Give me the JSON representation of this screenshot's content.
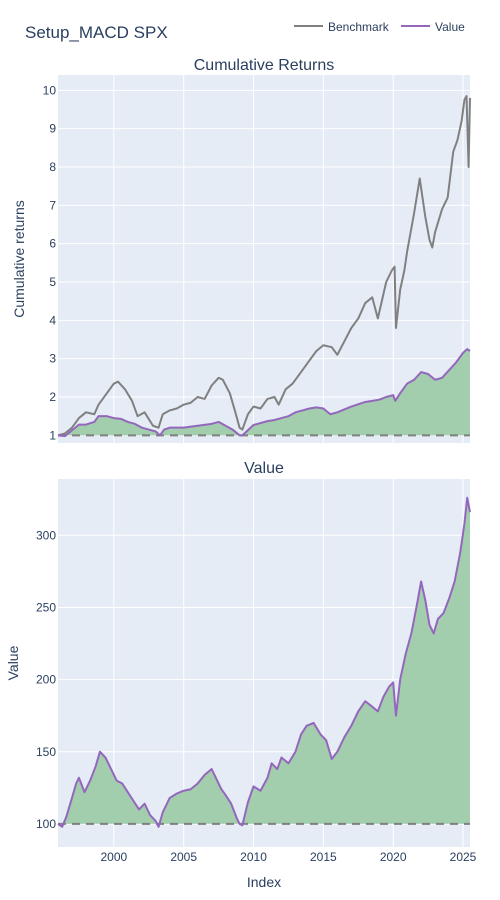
{
  "page": {
    "title": "Setup_MACD SPX"
  },
  "legend": {
    "items": [
      {
        "label": "Benchmark",
        "color": "#808080"
      },
      {
        "label": "Value",
        "color": "#9467bd"
      }
    ]
  },
  "colors": {
    "plot_bg": "#e5ecf6",
    "grid": "#ffffff",
    "benchmark": "#808080",
    "value": "#9467bd",
    "fill": "#9ecca9",
    "baseline": "#808080",
    "text": "#2a3f5f"
  },
  "chart_data": [
    {
      "type": "line",
      "title": "Cumulative Returns",
      "ylabel": "Cumulative returns",
      "xlim": [
        1996.0,
        2025.5
      ],
      "ylim": [
        0.8,
        10.4
      ],
      "y_ticks": [
        1,
        2,
        3,
        4,
        5,
        6,
        7,
        8,
        9,
        10
      ],
      "baseline": 1,
      "grid": true,
      "fill_series": "Value",
      "series": [
        {
          "name": "Benchmark",
          "x": [
            1996.0,
            1996.5,
            1997.0,
            1997.5,
            1998.0,
            1998.6,
            1998.9,
            1999.5,
            2000.0,
            2000.3,
            2000.8,
            2001.3,
            2001.7,
            2002.2,
            2002.8,
            2003.2,
            2003.5,
            2004.0,
            2004.5,
            2005.0,
            2005.5,
            2006.0,
            2006.5,
            2007.0,
            2007.5,
            2007.8,
            2008.3,
            2008.7,
            2009.0,
            2009.2,
            2009.6,
            2010.0,
            2010.5,
            2011.0,
            2011.5,
            2011.8,
            2012.3,
            2012.8,
            2013.5,
            2014.0,
            2014.5,
            2015.0,
            2015.6,
            2016.0,
            2016.5,
            2017.0,
            2017.5,
            2018.0,
            2018.5,
            2018.9,
            2019.5,
            2019.9,
            2020.1,
            2020.2,
            2020.5,
            2020.8,
            2021.0,
            2021.5,
            2021.9,
            2022.3,
            2022.6,
            2022.8,
            2023.0,
            2023.5,
            2023.9,
            2024.3,
            2024.6,
            2024.9,
            2025.1,
            2025.25,
            2025.4,
            2025.5
          ],
          "values": [
            1.0,
            1.05,
            1.2,
            1.45,
            1.6,
            1.55,
            1.8,
            2.1,
            2.35,
            2.4,
            2.2,
            1.9,
            1.5,
            1.6,
            1.25,
            1.2,
            1.55,
            1.65,
            1.7,
            1.8,
            1.85,
            2.0,
            1.95,
            2.3,
            2.5,
            2.45,
            2.1,
            1.6,
            1.2,
            1.15,
            1.55,
            1.75,
            1.7,
            1.95,
            2.0,
            1.8,
            2.2,
            2.35,
            2.7,
            2.95,
            3.2,
            3.35,
            3.3,
            3.1,
            3.45,
            3.8,
            4.05,
            4.45,
            4.6,
            4.05,
            5.0,
            5.3,
            5.4,
            3.8,
            4.8,
            5.3,
            5.8,
            6.8,
            7.7,
            6.7,
            6.1,
            5.9,
            6.3,
            6.9,
            7.2,
            8.4,
            8.7,
            9.2,
            9.75,
            9.85,
            8.0,
            9.8
          ]
        },
        {
          "name": "Value",
          "x": [
            1996.0,
            1996.5,
            1997.0,
            1997.5,
            1998.0,
            1998.6,
            1998.9,
            1999.5,
            2000.0,
            2000.5,
            2001.0,
            2001.5,
            2002.0,
            2002.5,
            2003.0,
            2003.3,
            2003.6,
            2004.0,
            2005.0,
            2006.0,
            2007.0,
            2007.5,
            2008.0,
            2008.5,
            2009.0,
            2009.2,
            2010.0,
            2011.0,
            2011.5,
            2012.0,
            2012.5,
            2013.0,
            2013.5,
            2014.0,
            2014.5,
            2015.0,
            2015.5,
            2016.0,
            2017.0,
            2018.0,
            2018.5,
            2019.0,
            2019.5,
            2020.0,
            2020.15,
            2020.5,
            2021.0,
            2021.5,
            2022.0,
            2022.5,
            2023.0,
            2023.5,
            2024.0,
            2024.5,
            2025.0,
            2025.3,
            2025.5
          ],
          "values": [
            1.0,
            0.98,
            1.13,
            1.28,
            1.28,
            1.35,
            1.5,
            1.5,
            1.45,
            1.43,
            1.35,
            1.3,
            1.2,
            1.15,
            1.1,
            1.0,
            1.15,
            1.2,
            1.2,
            1.25,
            1.3,
            1.35,
            1.25,
            1.15,
            1.0,
            1.0,
            1.27,
            1.37,
            1.4,
            1.45,
            1.5,
            1.6,
            1.65,
            1.7,
            1.73,
            1.7,
            1.55,
            1.6,
            1.75,
            1.87,
            1.9,
            1.93,
            2.0,
            2.05,
            1.9,
            2.1,
            2.35,
            2.45,
            2.65,
            2.6,
            2.45,
            2.5,
            2.7,
            2.9,
            3.15,
            3.25,
            3.2
          ]
        }
      ]
    },
    {
      "type": "area",
      "title": "Value",
      "xlabel": "Index",
      "ylabel": "Value",
      "xlim": [
        1996.0,
        2025.5
      ],
      "ylim": [
        84,
        339
      ],
      "y_ticks": [
        100,
        150,
        200,
        250,
        300
      ],
      "x_ticks": [
        "2000",
        "2005",
        "2010",
        "2015",
        "2020",
        "2025"
      ],
      "baseline": 100,
      "grid": true,
      "series": [
        {
          "name": "Value",
          "x": [
            1996.0,
            1996.3,
            1996.6,
            1997.0,
            1997.3,
            1997.5,
            1997.9,
            1998.3,
            1998.7,
            1999.0,
            1999.4,
            1999.8,
            2000.2,
            2000.6,
            2001.0,
            2001.4,
            2001.8,
            2002.2,
            2002.6,
            2003.0,
            2003.2,
            2003.5,
            2004.0,
            2004.5,
            2005.0,
            2005.5,
            2006.0,
            2006.5,
            2007.0,
            2007.3,
            2007.7,
            2008.0,
            2008.4,
            2008.8,
            2009.0,
            2009.2,
            2009.6,
            2010.0,
            2010.5,
            2011.0,
            2011.3,
            2011.7,
            2012.0,
            2012.5,
            2013.0,
            2013.4,
            2013.8,
            2014.3,
            2014.8,
            2015.2,
            2015.6,
            2016.0,
            2016.5,
            2017.0,
            2017.5,
            2018.0,
            2018.4,
            2018.9,
            2019.3,
            2019.7,
            2020.0,
            2020.2,
            2020.5,
            2020.9,
            2021.3,
            2021.7,
            2022.0,
            2022.3,
            2022.6,
            2022.9,
            2023.2,
            2023.6,
            2024.0,
            2024.4,
            2024.8,
            2025.1,
            2025.3,
            2025.5
          ],
          "values": [
            100,
            98,
            105,
            118,
            128,
            132,
            122,
            130,
            140,
            150,
            146,
            138,
            130,
            128,
            122,
            116,
            110,
            114,
            106,
            102,
            98,
            108,
            118,
            121,
            123,
            124,
            128,
            134,
            138,
            132,
            124,
            120,
            114,
            104,
            100,
            99,
            115,
            126,
            123,
            132,
            142,
            138,
            146,
            142,
            150,
            162,
            168,
            170,
            162,
            158,
            145,
            150,
            160,
            168,
            178,
            185,
            182,
            178,
            188,
            195,
            198,
            175,
            200,
            218,
            232,
            252,
            268,
            255,
            238,
            232,
            242,
            246,
            256,
            268,
            288,
            308,
            326,
            316
          ]
        }
      ]
    }
  ]
}
